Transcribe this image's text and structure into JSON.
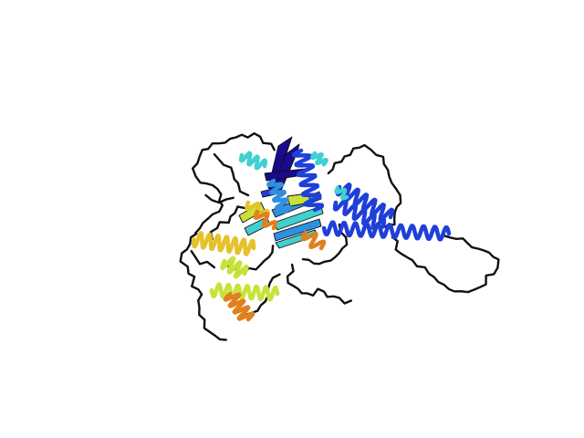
{
  "scene": {
    "subject": "protein-cartoon",
    "background_color": "#ffffff",
    "coil_color": "#111111",
    "colormap": [
      "#1a0a8c",
      "#1f3fd9",
      "#2f8fe0",
      "#3fd0d0",
      "#c9e23a",
      "#e6c22a",
      "#e0801f"
    ]
  }
}
